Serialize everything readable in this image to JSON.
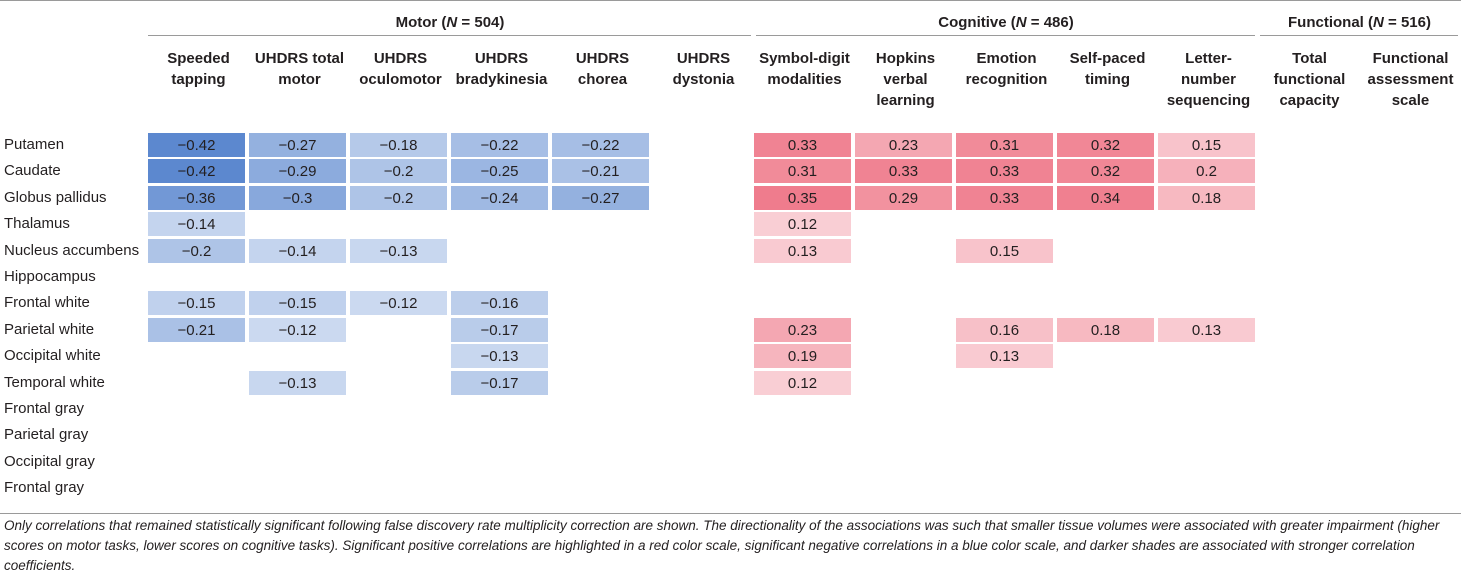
{
  "groups": [
    {
      "label": "Motor (N = 504)",
      "prefix": "Motor (",
      "var": "N",
      "suffix": " = 504)"
    },
    {
      "label": "Cognitive (N = 486)",
      "prefix": "Cognitive (",
      "var": "N",
      "suffix": " = 486)"
    },
    {
      "label": "Functional (N = 516)",
      "prefix": "Functional (",
      "var": "N",
      "suffix": " = 516)"
    }
  ],
  "columns": [
    [
      "Speeded",
      "tapping"
    ],
    [
      "UHDRS total",
      "motor"
    ],
    [
      "UHDRS",
      "oculomotor"
    ],
    [
      "UHDRS",
      "bradykinesia"
    ],
    [
      "UHDRS",
      "chorea"
    ],
    [
      "UHDRS",
      "dystonia"
    ],
    [
      "Symbol-digit",
      "modalities"
    ],
    [
      "Hopkins",
      "verbal",
      "learning"
    ],
    [
      "Emotion",
      "recognition"
    ],
    [
      "Self-paced",
      "timing"
    ],
    [
      "Letter-",
      "number",
      "sequencing"
    ],
    [
      "Total",
      "functional",
      "capacity"
    ],
    [
      "Functional",
      "assessment",
      "scale"
    ]
  ],
  "rows": [
    {
      "label": "Putamen",
      "values": [
        "−0.42",
        "−0.27",
        "−0.18",
        "−0.22",
        "−0.22",
        "",
        "0.33",
        "0.23",
        "0.31",
        "0.32",
        "0.15",
        "",
        ""
      ]
    },
    {
      "label": "Caudate",
      "values": [
        "−0.42",
        "−0.29",
        "−0.2",
        "−0.25",
        "−0.21",
        "",
        "0.31",
        "0.33",
        "0.33",
        "0.32",
        "0.2",
        "",
        ""
      ]
    },
    {
      "label": "Globus pallidus",
      "values": [
        "−0.36",
        "−0.3",
        "−0.2",
        "−0.24",
        "−0.27",
        "",
        "0.35",
        "0.29",
        "0.33",
        "0.34",
        "0.18",
        "",
        ""
      ]
    },
    {
      "label": "Thalamus",
      "values": [
        "−0.14",
        "",
        "",
        "",
        "",
        "",
        "0.12",
        "",
        "",
        "",
        "",
        "",
        ""
      ]
    },
    {
      "label": "Nucleus accumbens",
      "values": [
        "−0.2",
        "−0.14",
        "−0.13",
        "",
        "",
        "",
        "0.13",
        "",
        "0.15",
        "",
        "",
        "",
        ""
      ]
    },
    {
      "label": "Hippocampus",
      "values": [
        "",
        "",
        "",
        "",
        "",
        "",
        "",
        "",
        "",
        "",
        "",
        "",
        ""
      ]
    },
    {
      "label": "Frontal white",
      "values": [
        "−0.15",
        "−0.15",
        "−0.12",
        "−0.16",
        "",
        "",
        "",
        "",
        "",
        "",
        "",
        "",
        ""
      ]
    },
    {
      "label": "Parietal white",
      "values": [
        "−0.21",
        "−0.12",
        "",
        "−0.17",
        "",
        "",
        "0.23",
        "",
        "0.16",
        "0.18",
        "0.13",
        "",
        ""
      ]
    },
    {
      "label": "Occipital white",
      "values": [
        "",
        "",
        "",
        "−0.13",
        "",
        "",
        "0.19",
        "",
        "0.13",
        "",
        "",
        "",
        ""
      ]
    },
    {
      "label": "Temporal white",
      "values": [
        "",
        "−0.13",
        "",
        "−0.17",
        "",
        "",
        "0.12",
        "",
        "",
        "",
        "",
        "",
        ""
      ]
    },
    {
      "label": "Frontal gray",
      "values": [
        "",
        "",
        "",
        "",
        "",
        "",
        "",
        "",
        "",
        "",
        "",
        "",
        ""
      ]
    },
    {
      "label": "Parietal gray",
      "values": [
        "",
        "",
        "",
        "",
        "",
        "",
        "",
        "",
        "",
        "",
        "",
        "",
        ""
      ]
    },
    {
      "label": "Occipital gray",
      "values": [
        "",
        "",
        "",
        "",
        "",
        "",
        "",
        "",
        "",
        "",
        "",
        "",
        ""
      ]
    },
    {
      "label": "Frontal gray",
      "values": [
        "",
        "",
        "",
        "",
        "",
        "",
        "",
        "",
        "",
        "",
        "",
        "",
        ""
      ]
    }
  ],
  "colors": {
    "negative_rgb": [
      88,
      133,
      206
    ],
    "positive_rgb": [
      236,
      96,
      116
    ]
  },
  "footnote": "Only correlations that remained statistically significant following false discovery rate multiplicity correction are shown. The directionality of the associations was such that smaller tissue volumes were associated with greater impairment (higher scores on motor tasks, lower scores on cognitive tasks). Significant positive correlations are highlighted in a red color scale, significant negative correlations in a blue color scale, and darker shades are associated with stronger correlation coefficients."
}
